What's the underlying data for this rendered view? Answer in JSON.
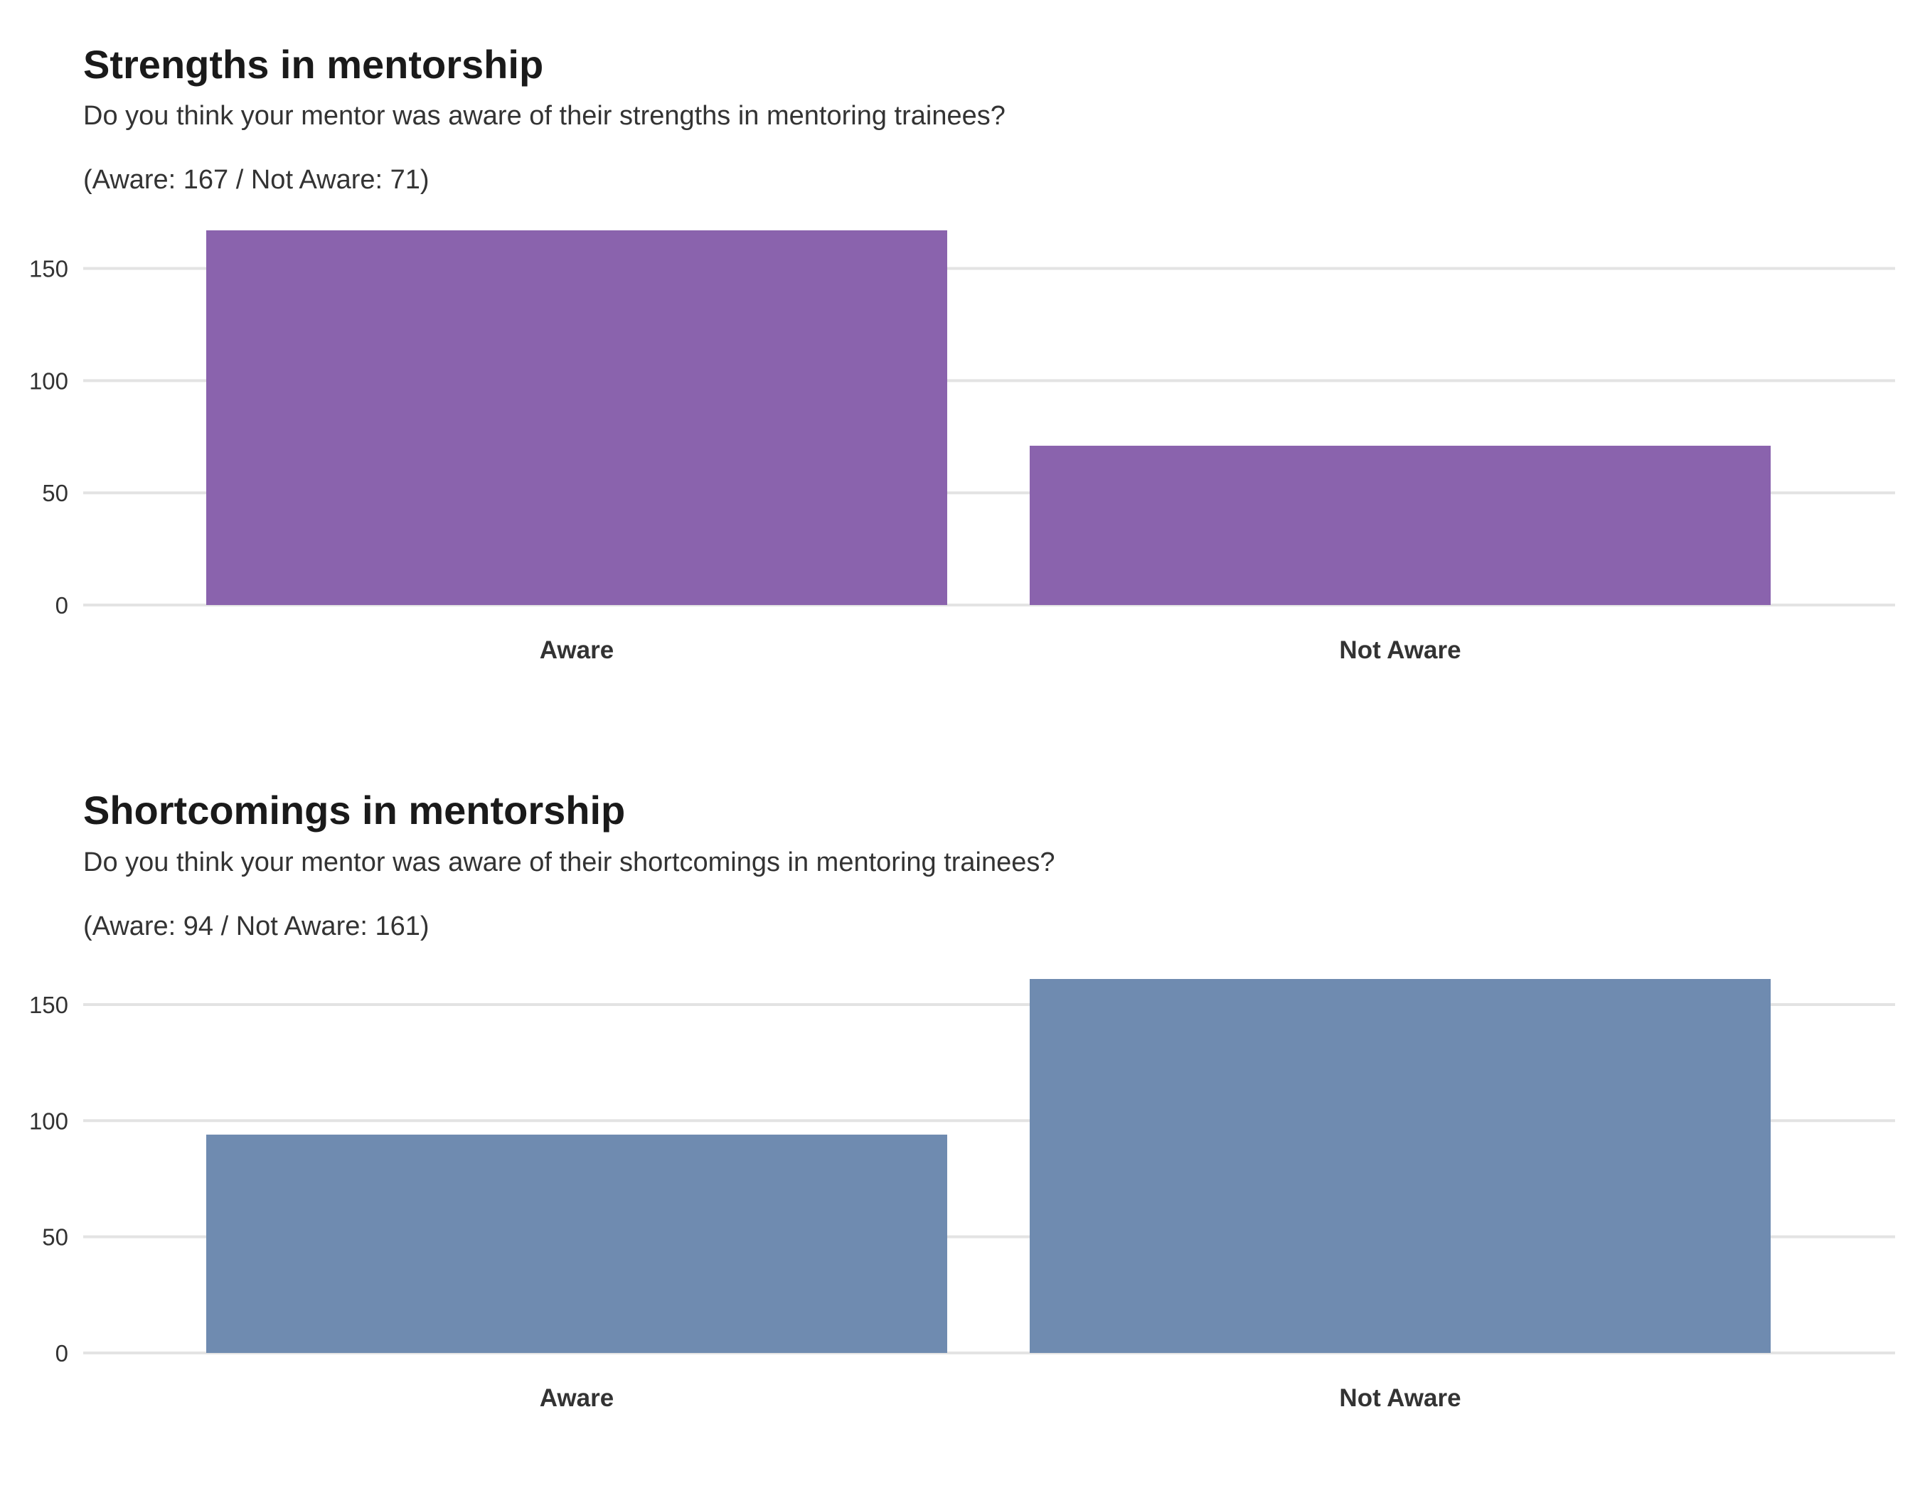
{
  "chart_data": [
    {
      "type": "bar",
      "title": "Strengths in mentorship",
      "subtitle": "Do you think your mentor was aware of their strengths in mentoring trainees?",
      "note": "(Aware: 167 / Not Aware: 71)",
      "categories": [
        "Aware",
        "Not Aware"
      ],
      "values": [
        167,
        71
      ],
      "ylim": [
        0,
        167
      ],
      "yticks": [
        0,
        50,
        100,
        150
      ],
      "xlabel": "",
      "ylabel": "",
      "grid": true,
      "legend": "none",
      "bar_color": "#8a63ad"
    },
    {
      "type": "bar",
      "title": "Shortcomings in mentorship",
      "subtitle": "Do you think your mentor was aware of their shortcomings in mentoring trainees?",
      "note": "(Aware: 94 / Not Aware: 161)",
      "categories": [
        "Aware",
        "Not Aware"
      ],
      "values": [
        94,
        161
      ],
      "ylim": [
        0,
        161
      ],
      "yticks": [
        0,
        50,
        100,
        150
      ],
      "xlabel": "",
      "ylabel": "",
      "grid": true,
      "legend": "none",
      "bar_color": "#6f8bb0"
    }
  ]
}
